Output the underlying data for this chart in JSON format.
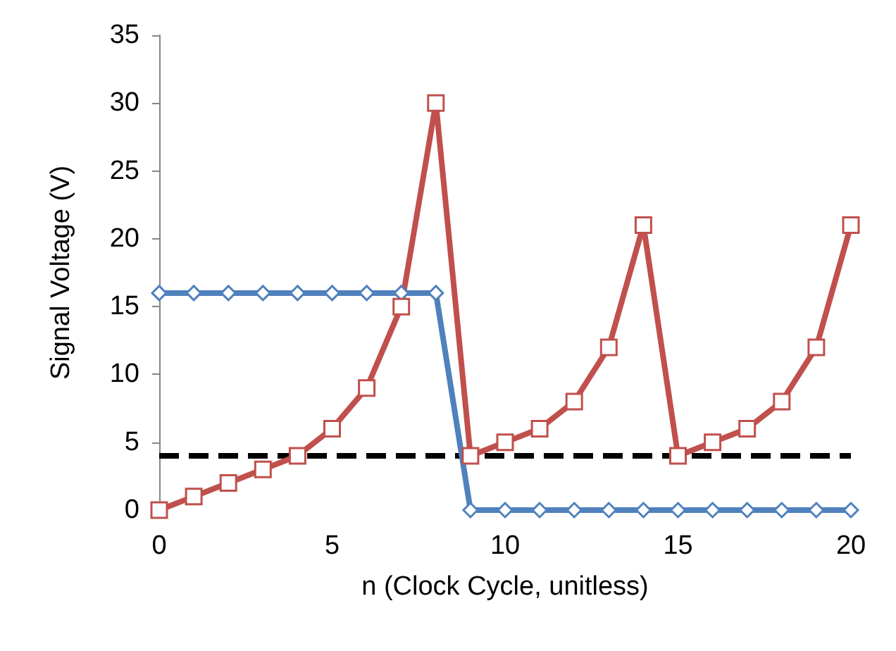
{
  "chart_data": {
    "type": "line",
    "xlabel": "n (Clock Cycle, unitless)",
    "ylabel": "Signal Voltage (V)",
    "x": [
      0,
      1,
      2,
      3,
      4,
      5,
      6,
      7,
      8,
      9,
      10,
      11,
      12,
      13,
      14,
      15,
      16,
      17,
      18,
      19,
      20
    ],
    "series": [
      {
        "color": "#4f81bd",
        "marker": "diamond",
        "values": [
          16,
          16,
          16,
          16,
          16,
          16,
          16,
          16,
          16,
          0,
          0,
          0,
          0,
          0,
          0,
          0,
          0,
          0,
          0,
          0,
          0
        ]
      },
      {
        "color": "#c0504d",
        "marker": "square",
        "values": [
          0,
          1,
          2,
          3,
          4,
          6,
          9,
          15,
          30,
          4,
          5,
          6,
          8,
          12,
          21,
          4,
          5,
          6,
          8,
          12,
          21
        ]
      }
    ],
    "ref_lines": [
      {
        "axis": "y",
        "value": 4,
        "color": "#000000",
        "line_style": "dashed"
      }
    ],
    "xlim": [
      0,
      20
    ],
    "xticks": [
      0,
      5,
      10,
      15,
      20
    ],
    "ylim": [
      0,
      35
    ],
    "yticks": [
      0,
      5,
      10,
      15,
      20,
      25,
      30,
      35
    ],
    "line_style": "solid"
  }
}
